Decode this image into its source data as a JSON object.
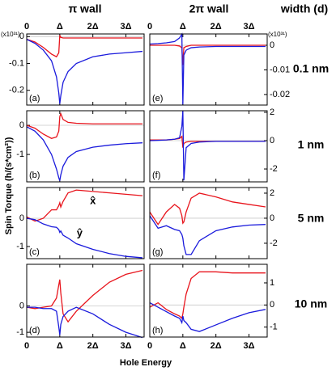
{
  "column_titles": [
    "π wall",
    "2π wall"
  ],
  "width_title": "width (d)",
  "row_labels": [
    "0.1 nm",
    "1 nm",
    "5 nm",
    "10 nm"
  ],
  "x_label": "Hole Energy",
  "y_label": "Spin Torque (h/(s*cm²))",
  "chart_data": [
    {
      "type": "line",
      "label": "(a)",
      "scale_label": "(x10³¹)",
      "zero_line": true,
      "x": [
        0,
        0.25,
        0.5,
        0.75,
        0.9,
        0.97,
        1.0,
        1.03,
        1.1,
        1.25,
        1.5,
        2,
        2.5,
        3,
        3.5
      ],
      "xlim": [
        0,
        3.55
      ],
      "xticks": [
        0,
        {
          "value": 1,
          "label": "Δ"
        },
        {
          "value": 2,
          "label": "2Δ"
        },
        {
          "value": 3,
          "label": "3Δ"
        }
      ],
      "ylim": [
        -0.255,
        0.01
      ],
      "yticks": [
        0,
        -0.1,
        -0.2
      ],
      "series": [
        {
          "color": "#e8141c",
          "values": [
            -0.01,
            -0.02,
            -0.04,
            -0.065,
            -0.075,
            -0.06,
            0.005,
            -0.003,
            -0.005,
            -0.005,
            -0.005,
            -0.005,
            -0.005,
            -0.005,
            -0.005
          ]
        },
        {
          "color": "#1a1adc",
          "values": [
            -0.01,
            -0.025,
            -0.05,
            -0.09,
            -0.15,
            -0.21,
            -0.25,
            -0.22,
            -0.17,
            -0.13,
            -0.1,
            -0.075,
            -0.065,
            -0.06,
            -0.055
          ]
        }
      ]
    },
    {
      "type": "line",
      "label": "(b)",
      "zero_line": true,
      "x": [
        0,
        0.25,
        0.5,
        0.75,
        0.9,
        0.97,
        1.0,
        1.03,
        1.1,
        1.25,
        1.5,
        2,
        2.5,
        3,
        3.5
      ],
      "xlim": [
        0,
        3.55
      ],
      "xticks": [
        0,
        1,
        2,
        3
      ],
      "ylim": [
        -1.94,
        0.5
      ],
      "yticks": [
        0,
        -1
      ],
      "series": [
        {
          "color": "#e8141c",
          "values": [
            0,
            -0.1,
            -0.3,
            -0.45,
            -0.4,
            -0.2,
            0.3,
            0.4,
            0.2,
            0.1,
            0.07,
            0.05,
            0.05,
            0.05,
            0.05
          ]
        },
        {
          "color": "#1a1adc",
          "values": [
            -0.05,
            -0.2,
            -0.5,
            -1,
            -1.5,
            -1.8,
            -1.9,
            -1.7,
            -1.4,
            -1.1,
            -0.9,
            -0.75,
            -0.68,
            -0.63,
            -0.6
          ]
        }
      ]
    },
    {
      "type": "line",
      "label": "(c)",
      "zero_line": true,
      "annotations": [
        {
          "text": "x̂",
          "color": "#e8141c",
          "x": 2.0,
          "y": 0.6
        },
        {
          "text": "ŷ",
          "color": "#1a1adc",
          "x": 1.6,
          "y": -0.55
        }
      ],
      "x": [
        0,
        0.25,
        0.5,
        0.75,
        0.9,
        0.97,
        1.0,
        1.03,
        1.1,
        1.25,
        1.5,
        2,
        2.5,
        3,
        3.5
      ],
      "xlim": [
        0,
        3.55
      ],
      "xticks": [
        0,
        1,
        2,
        3
      ],
      "ylim": [
        -1.43,
        1.09
      ],
      "yticks": [
        0,
        -1
      ],
      "series": [
        {
          "color": "#e8141c",
          "values": [
            0.05,
            -0.1,
            0,
            0.3,
            0.3,
            0.45,
            0.55,
            0.4,
            0.6,
            0.9,
            1.0,
            0.95,
            0.9,
            0.85,
            0.8
          ]
        },
        {
          "color": "#1a1adc",
          "values": [
            0,
            -0.05,
            -0.2,
            -0.3,
            -0.32,
            -0.4,
            -0.5,
            -0.45,
            -0.6,
            -0.7,
            -0.9,
            -1.1,
            -1.25,
            -1.35,
            -1.4
          ]
        }
      ]
    },
    {
      "type": "line",
      "label": "(d)",
      "zero_line": true,
      "x": [
        0,
        0.25,
        0.5,
        0.75,
        0.9,
        0.97,
        1.0,
        1.03,
        1.1,
        1.25,
        1.5,
        2,
        2.5,
        3,
        3.5
      ],
      "xlim": [
        0,
        3.55
      ],
      "xticks": [
        0,
        {
          "value": 1,
          "label": "Δ"
        },
        {
          "value": 2,
          "label": "2Δ"
        },
        {
          "value": 3,
          "label": "3Δ"
        }
      ],
      "ylim": [
        -1.18,
        1.58
      ],
      "yticks": [
        0,
        -1
      ],
      "series": [
        {
          "color": "#e8141c",
          "values": [
            -0.05,
            -0.1,
            -0.05,
            0,
            0.3,
            0.8,
            1.0,
            0.5,
            -0.3,
            -0.6,
            -0.2,
            0.4,
            0.9,
            1.2,
            1.35
          ]
        },
        {
          "color": "#1a1adc",
          "values": [
            -0.05,
            -0.05,
            -0.1,
            -0.1,
            -0.2,
            -0.8,
            -1.1,
            -0.7,
            -0.4,
            -0.2,
            -0.05,
            -0.3,
            -0.7,
            -1.0,
            -1.2
          ]
        }
      ]
    },
    {
      "type": "line",
      "label": "(e)",
      "scale_label": "(x10³¹)",
      "zero_line": true,
      "x": [
        0,
        0.25,
        0.5,
        0.75,
        0.9,
        0.97,
        1.0,
        1.03,
        1.1,
        1.25,
        1.5,
        2,
        2.5,
        3,
        3.5
      ],
      "xlim": [
        0,
        3.55
      ],
      "xticks": [
        0,
        {
          "value": 1,
          "label": "Δ"
        },
        {
          "value": 2,
          "label": "2Δ"
        },
        {
          "value": 3,
          "label": "3Δ"
        }
      ],
      "ylim": [
        -0.0243,
        0.0046
      ],
      "yticks": [
        0,
        -0.01,
        -0.02
      ],
      "series": [
        {
          "color": "#e8141c",
          "values": [
            0,
            0,
            0,
            0,
            -0.0003,
            -0.001,
            -0.008,
            -0.001,
            -0.0005,
            0,
            0,
            0,
            0,
            0,
            0
          ]
        },
        {
          "color": "#1a1adc",
          "values": [
            0.0005,
            0.0007,
            0.001,
            0.0015,
            0.003,
            0.0045,
            -0.024,
            -0.004,
            -0.002,
            -0.001,
            -0.0007,
            -0.0005,
            -0.0005,
            -0.0005,
            -0.0005
          ]
        }
      ]
    },
    {
      "type": "line",
      "label": "(f)",
      "zero_line": true,
      "x": [
        0,
        0.25,
        0.5,
        0.75,
        0.9,
        0.97,
        1.0,
        1.03,
        1.1,
        1.25,
        1.5,
        2,
        2.5,
        3,
        3.5
      ],
      "xlim": [
        0,
        3.55
      ],
      "xticks": [
        0,
        1,
        2,
        3
      ],
      "ylim": [
        -2.91,
        2.11
      ],
      "yticks": [
        2,
        0,
        -2
      ],
      "series": [
        {
          "color": "#e8141c",
          "values": [
            0.05,
            0.05,
            0.05,
            0.1,
            0.15,
            0.3,
            -0.5,
            -0.2,
            -0.1,
            -0.05,
            -0.05,
            -0.05,
            -0.05,
            -0.05,
            -0.05
          ]
        },
        {
          "color": "#1a1adc",
          "values": [
            0,
            0.02,
            0.05,
            0.1,
            0.2,
            1.0,
            2.1,
            -2.8,
            -0.5,
            -0.2,
            -0.1,
            -0.05,
            -0.05,
            -0.05,
            -0.05
          ]
        }
      ]
    },
    {
      "type": "line",
      "label": "(g)",
      "zero_line": true,
      "x": [
        0,
        0.25,
        0.5,
        0.75,
        0.9,
        0.97,
        1.0,
        1.03,
        1.1,
        1.25,
        1.5,
        2,
        2.5,
        3,
        3.5
      ],
      "xlim": [
        0,
        3.55
      ],
      "xticks": [
        0,
        1,
        2,
        3
      ],
      "ylim": [
        -3.23,
        2.45
      ],
      "yticks": [
        2,
        0,
        -2
      ],
      "series": [
        {
          "color": "#e8141c",
          "values": [
            0.5,
            -0.5,
            0.5,
            1.1,
            0.8,
            0.2,
            -0.4,
            -0.3,
            0.5,
            1.6,
            2.0,
            1.7,
            1.3,
            1.1,
            0.9
          ]
        },
        {
          "color": "#1a1adc",
          "values": [
            0.2,
            -0.8,
            -0.6,
            -0.9,
            -1.0,
            -1.3,
            -1.6,
            -2.2,
            -2.9,
            -2.9,
            -1.8,
            -1.0,
            -0.7,
            -0.55,
            -0.5
          ]
        }
      ]
    },
    {
      "type": "line",
      "label": "(h)",
      "zero_line": true,
      "x": [
        0,
        0.25,
        0.5,
        0.75,
        0.9,
        0.97,
        1.0,
        1.03,
        1.1,
        1.25,
        1.5,
        2,
        2.5,
        3,
        3.5
      ],
      "xlim": [
        0,
        3.55
      ],
      "xticks": [
        0,
        {
          "value": 1,
          "label": "Δ"
        },
        {
          "value": 2,
          "label": "2Δ"
        },
        {
          "value": 3,
          "label": "3Δ"
        }
      ],
      "ylim": [
        -1.45,
        1.84
      ],
      "yticks": [
        1,
        0,
        -1
      ],
      "series": [
        {
          "color": "#e8141c",
          "values": [
            -0.1,
            0.1,
            -0.2,
            -0.4,
            -0.5,
            -0.6,
            -0.4,
            -0.1,
            0.5,
            1.2,
            1.5,
            1.5,
            1.45,
            1.45,
            1.45
          ]
        },
        {
          "color": "#1a1adc",
          "values": [
            0.1,
            -0.1,
            -0.3,
            -0.5,
            -0.6,
            -0.8,
            -0.5,
            -0.7,
            -0.8,
            -1.1,
            -1.2,
            -0.9,
            -0.6,
            -0.35,
            -0.2
          ]
        }
      ]
    }
  ]
}
